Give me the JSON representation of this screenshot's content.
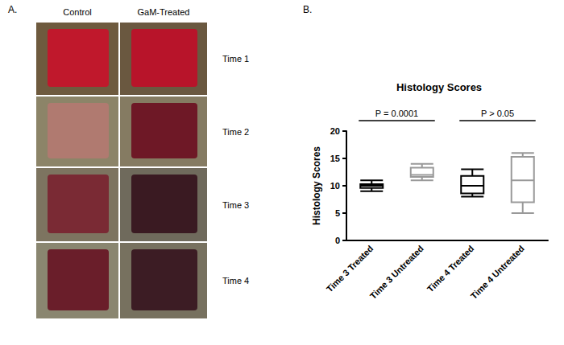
{
  "figure": {
    "panel_a": {
      "label": "A.",
      "columns": [
        "Control",
        "GaM-Treated"
      ],
      "rows": [
        "Time 1",
        "Time 2",
        "Time 3",
        "Time 4"
      ]
    },
    "panel_b": {
      "label": "B."
    }
  },
  "chart_data": {
    "type": "boxplot",
    "title": "Histology Scores",
    "y_label": "Histology Scores",
    "categories": [
      "Time 3 Treated",
      "Time 3 Untreated",
      "Time 4 Treated",
      "Time 4 Untreated"
    ],
    "values": [
      [
        9,
        9.6,
        10,
        10.3,
        11
      ],
      [
        11,
        11.6,
        12,
        13.3,
        14
      ],
      [
        8,
        8.6,
        10,
        11.8,
        13
      ],
      [
        5,
        7,
        11,
        15.3,
        16
      ]
    ],
    "colors": [
      "#000000",
      "#999999",
      "#000000",
      "#999999"
    ],
    "ylim": [
      0,
      20
    ],
    "yticks": [
      0,
      5,
      10,
      15,
      20
    ],
    "grid": false,
    "annotations": [
      {
        "text": "P = 0.0001",
        "span": [
          "Time 3 Treated",
          "Time 3 Untreated"
        ]
      },
      {
        "text": "P > 0.05",
        "span": [
          "Time 4 Treated",
          "Time 4 Untreated"
        ]
      }
    ]
  }
}
